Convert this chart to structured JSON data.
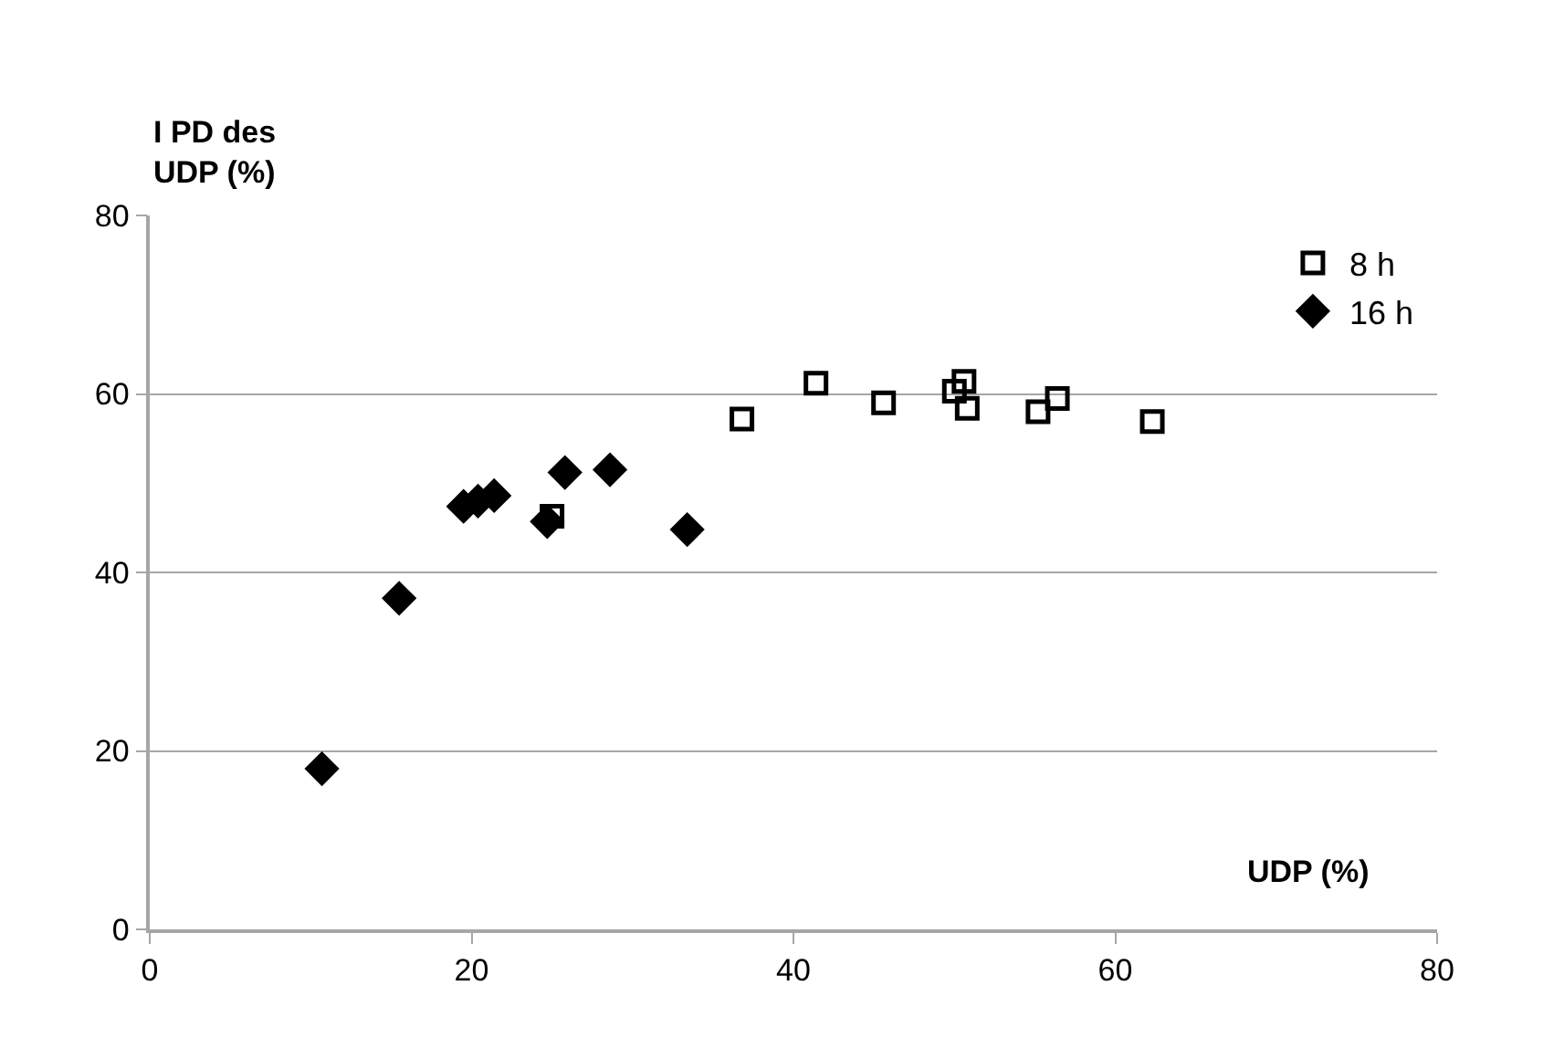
{
  "chart_data": {
    "type": "scatter",
    "xlabel": "UDP (%)",
    "ylabel": "I PD des\nUDP (%)",
    "xlim": [
      0,
      80
    ],
    "xticks": [
      0,
      20,
      40,
      60,
      80
    ],
    "ylim": [
      0,
      80
    ],
    "yticks": [
      0,
      20,
      40,
      60,
      80
    ],
    "grid": "y",
    "legend": "top right",
    "series": [
      {
        "name": "8 h",
        "color": "#000000",
        "marker": "square",
        "x": [
          25.0,
          36.8,
          41.4,
          45.6,
          50.0,
          50.6,
          50.8,
          55.2,
          56.4,
          62.3
        ],
        "values": [
          46.3,
          57.2,
          61.2,
          59.0,
          60.3,
          61.4,
          58.4,
          58.0,
          59.5,
          56.9
        ]
      },
      {
        "name": "16 h",
        "color": "#000000",
        "marker": "diamond",
        "x": [
          10.7,
          15.5,
          19.5,
          20.4,
          21.4,
          24.7,
          25.8,
          28.6,
          33.4
        ],
        "values": [
          18.0,
          37.1,
          47.4,
          48.0,
          48.6,
          45.7,
          51.2,
          51.5,
          44.8
        ]
      }
    ]
  }
}
